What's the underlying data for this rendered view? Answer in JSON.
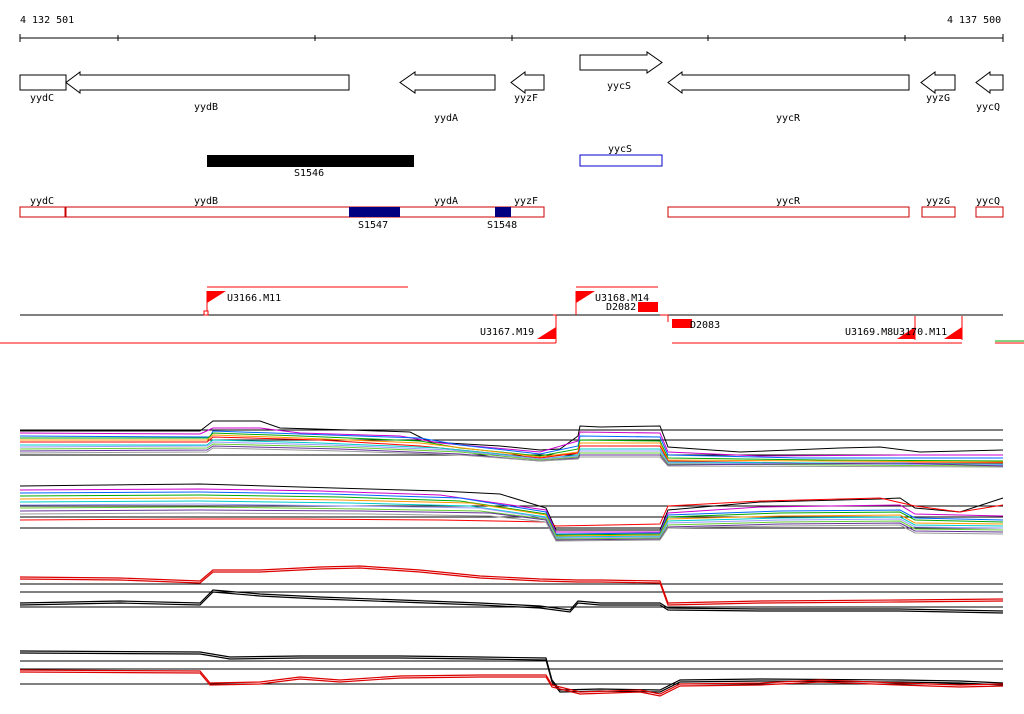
{
  "coords": {
    "start_label": "4 132 501",
    "end_label": "4 137 500"
  },
  "genes": [
    {
      "label": "yydC",
      "strand": "-"
    },
    {
      "label": "yydB",
      "strand": "-"
    },
    {
      "label": "yydA",
      "strand": "-"
    },
    {
      "label": "yyzF",
      "strand": "-"
    },
    {
      "label": "yycS",
      "strand": "+"
    },
    {
      "label": "yycR",
      "strand": "-"
    },
    {
      "label": "yyzG",
      "strand": "-"
    },
    {
      "label": "yycQ",
      "strand": "-"
    }
  ],
  "segments": [
    {
      "label": "S1546",
      "color": "#000000"
    },
    {
      "label": "yycS",
      "color": "#0000cc"
    }
  ],
  "transcribed_genes": [
    {
      "label": "yydC"
    },
    {
      "label": "yydB"
    },
    {
      "label": "yydA"
    },
    {
      "label": "yyzF"
    },
    {
      "label": "yycR"
    },
    {
      "label": "yyzG"
    },
    {
      "label": "yycQ"
    }
  ],
  "blocks": [
    {
      "label": "S1547",
      "color": "#000080"
    },
    {
      "label": "S1548",
      "color": "#000080"
    }
  ],
  "transcription_units": [
    {
      "label": "U3166.M11"
    },
    {
      "label": "U3168.M14"
    },
    {
      "label": "D2082"
    },
    {
      "label": "D2083"
    },
    {
      "label": "U3167.M19"
    },
    {
      "label": "U3169.M8"
    },
    {
      "label": "U3170.M11"
    }
  ],
  "colors": {
    "gene_outline": "#000000",
    "transcript_outline": "#cc0000",
    "unit": "#ff0000",
    "profile_accent": "#dd0000"
  }
}
